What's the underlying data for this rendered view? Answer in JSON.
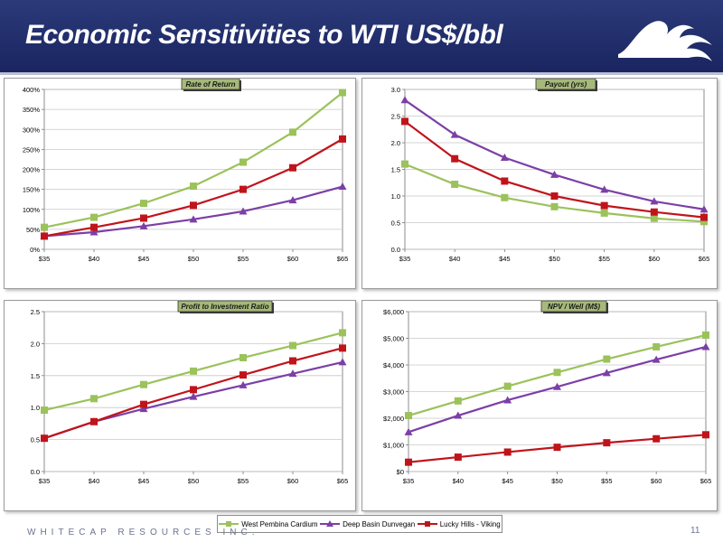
{
  "slide": {
    "title": "Economic Sensitivities to WTI US$/bbl",
    "company": "WHITECAP RESOURCES INC.",
    "page_number": "11"
  },
  "colors": {
    "header_bg": "#22306e",
    "series_green": "#9bc25b",
    "series_purple": "#7b3fa6",
    "series_red": "#c0141b",
    "title_badge": "#a6b97a"
  },
  "legend": {
    "items": [
      {
        "label": "West Pembina Cardium",
        "color": "#9bc25b",
        "marker": "square"
      },
      {
        "label": "Deep Basin Dunvegan",
        "color": "#7b3fa6",
        "marker": "triangle"
      },
      {
        "label": "Lucky Hills - Viking",
        "color": "#c0141b",
        "marker": "square"
      }
    ]
  },
  "chart_data": [
    {
      "type": "line",
      "title": "Rate of Return",
      "x": [
        "$35",
        "$40",
        "$45",
        "$50",
        "$55",
        "$60",
        "$65"
      ],
      "ylim": [
        0,
        400
      ],
      "yticks": [
        "0%",
        "50%",
        "100%",
        "150%",
        "200%",
        "250%",
        "300%",
        "350%",
        "400%"
      ],
      "ystep": 50,
      "grid": true,
      "series": [
        {
          "name": "West Pembina Cardium",
          "color": "#9bc25b",
          "marker": "square",
          "values": [
            55,
            80,
            115,
            158,
            218,
            293,
            392
          ]
        },
        {
          "name": "Deep Basin Dunvegan",
          "color": "#7b3fa6",
          "marker": "triangle",
          "values": [
            33,
            43,
            58,
            75,
            95,
            123,
            157
          ]
        },
        {
          "name": "Lucky Hills - Viking",
          "color": "#c0141b",
          "marker": "square",
          "values": [
            33,
            55,
            78,
            110,
            150,
            204,
            276
          ]
        }
      ]
    },
    {
      "type": "line",
      "title": "Payout (yrs)",
      "x": [
        "$35",
        "$40",
        "$45",
        "$50",
        "$55",
        "$60",
        "$65"
      ],
      "ylim": [
        0,
        3
      ],
      "yticks": [
        "0.0",
        "0.5",
        "1.0",
        "1.5",
        "2.0",
        "2.5",
        "3.0"
      ],
      "ystep": 0.5,
      "grid": true,
      "series": [
        {
          "name": "West Pembina Cardium",
          "color": "#9bc25b",
          "marker": "square",
          "values": [
            1.6,
            1.22,
            0.97,
            0.8,
            0.68,
            0.58,
            0.52
          ]
        },
        {
          "name": "Deep Basin Dunvegan",
          "color": "#7b3fa6",
          "marker": "triangle",
          "values": [
            2.8,
            2.15,
            1.72,
            1.4,
            1.12,
            0.9,
            0.75
          ]
        },
        {
          "name": "Lucky Hills - Viking",
          "color": "#c0141b",
          "marker": "square",
          "values": [
            2.4,
            1.7,
            1.28,
            1.0,
            0.82,
            0.7,
            0.6
          ]
        }
      ]
    },
    {
      "type": "line",
      "title": "Profit to Investment Ratio",
      "x": [
        "$35",
        "$40",
        "$45",
        "$50",
        "$55",
        "$60",
        "$65"
      ],
      "ylim": [
        0,
        2.5
      ],
      "yticks": [
        "0.0",
        "0.5",
        "1.0",
        "1.5",
        "2.0",
        "2.5"
      ],
      "ystep": 0.5,
      "grid": true,
      "series": [
        {
          "name": "West Pembina Cardium",
          "color": "#9bc25b",
          "marker": "square",
          "values": [
            0.96,
            1.14,
            1.36,
            1.57,
            1.78,
            1.97,
            2.17
          ]
        },
        {
          "name": "Deep Basin Dunvegan",
          "color": "#7b3fa6",
          "marker": "triangle",
          "values": [
            0.52,
            0.78,
            0.98,
            1.17,
            1.35,
            1.53,
            1.71
          ]
        },
        {
          "name": "Lucky Hills - Viking",
          "color": "#c0141b",
          "marker": "square",
          "values": [
            0.52,
            0.78,
            1.05,
            1.28,
            1.51,
            1.73,
            1.93
          ]
        }
      ]
    },
    {
      "type": "line",
      "title": "NPV / Well (M$)",
      "x": [
        "$35",
        "$40",
        "$45",
        "$50",
        "$55",
        "$60",
        "$65"
      ],
      "ylim": [
        0,
        6000
      ],
      "yticks": [
        "$0",
        "$1,000",
        "$2,000",
        "$3,000",
        "$4,000",
        "$5,000",
        "$6,000"
      ],
      "ystep": 1000,
      "grid": true,
      "series": [
        {
          "name": "West Pembina Cardium",
          "color": "#9bc25b",
          "marker": "square",
          "values": [
            2100,
            2650,
            3200,
            3720,
            4220,
            4680,
            5120
          ]
        },
        {
          "name": "Deep Basin Dunvegan",
          "color": "#7b3fa6",
          "marker": "triangle",
          "values": [
            1480,
            2100,
            2680,
            3180,
            3700,
            4200,
            4680
          ]
        },
        {
          "name": "Lucky Hills - Viking",
          "color": "#c0141b",
          "marker": "square",
          "values": [
            350,
            540,
            730,
            910,
            1080,
            1230,
            1380
          ]
        }
      ]
    }
  ]
}
